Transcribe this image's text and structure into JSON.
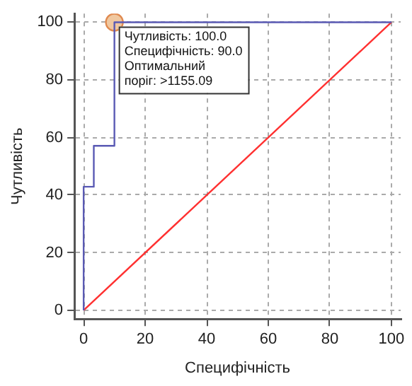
{
  "chart_data": {
    "type": "line",
    "xlabel": "Специфічність",
    "ylabel": "Чутливість",
    "xlim": [
      -3,
      103
    ],
    "ylim": [
      -3,
      103
    ],
    "xticks": [
      0,
      20,
      40,
      60,
      80,
      100
    ],
    "yticks": [
      0,
      20,
      40,
      60,
      80,
      100
    ],
    "grid": true,
    "legend": false,
    "marker": "none",
    "line_style": "solid",
    "series": [
      {
        "type": "line",
        "color": "#5a5ab4",
        "x": [
          0,
          0,
          3.3,
          3.3,
          10,
          10,
          100
        ],
        "values": [
          0,
          42.9,
          42.9,
          57.1,
          57.1,
          100,
          100
        ]
      },
      {
        "type": "line",
        "color": "#ff3030",
        "x": [
          0,
          100
        ],
        "values": [
          0,
          100
        ]
      },
      {
        "type": "scatter",
        "marker": "circle",
        "color": "#f0c8a0",
        "x": [
          10
        ],
        "values": [
          100
        ]
      }
    ],
    "annotations": [
      {
        "text": "Чутливість: 100.0\nСпецифічність: 90.0\nОптимальний\nпоріг: >1155.09",
        "x": 10,
        "y": 100
      }
    ]
  }
}
